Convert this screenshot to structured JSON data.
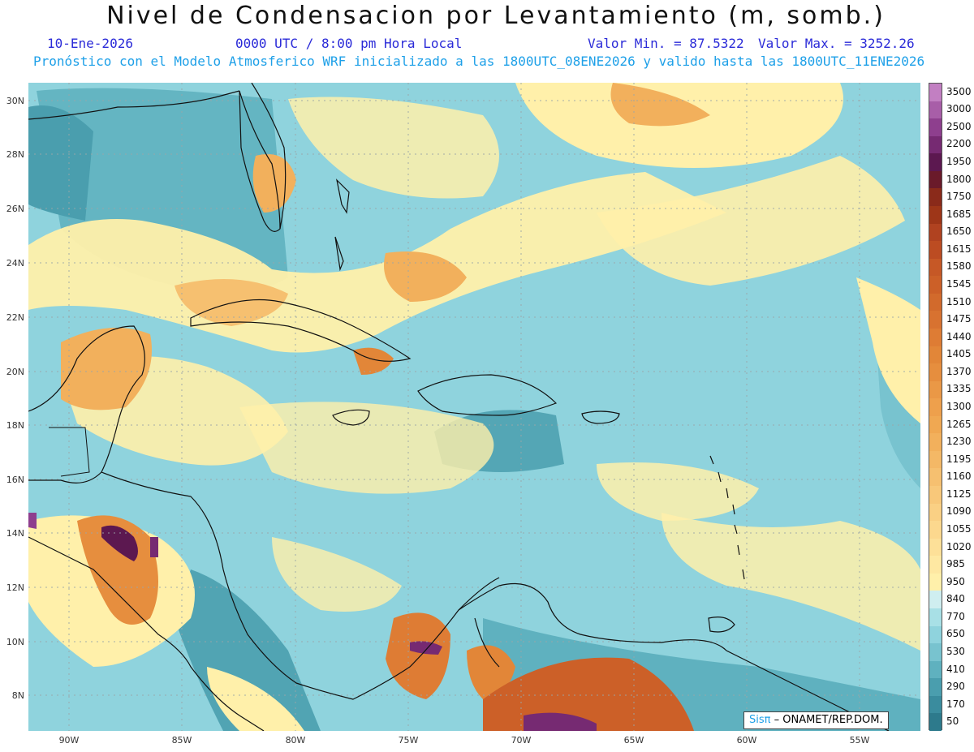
{
  "header": {
    "title": "Nivel de Condensacion por Levantamiento (m, somb.)",
    "date": "10-Ene-2026",
    "time": "0000 UTC / 8:00 pm Hora Local",
    "val_min": "Valor Min. = 87.5322",
    "val_max": "Valor Max. = 3252.26",
    "model_info": "Pronóstico con el Modelo Atmosferico WRF inicializado a las 1800UTC_08ENE2026 y valido hasta las  1800UTC_11ENE2026"
  },
  "map": {
    "lat_labels": [
      "30N",
      "28N",
      "26N",
      "24N",
      "22N",
      "20N",
      "18N",
      "16N",
      "14N",
      "12N",
      "10N",
      "8N"
    ],
    "lon_labels": [
      "90W",
      "85W",
      "80W",
      "75W",
      "70W",
      "65W",
      "60W",
      "55W"
    ]
  },
  "colorbar": {
    "labels": [
      "3500",
      "3000",
      "2500",
      "2200",
      "1950",
      "1800",
      "1750",
      "1685",
      "1650",
      "1615",
      "1580",
      "1545",
      "1510",
      "1475",
      "1440",
      "1405",
      "1370",
      "1335",
      "1300",
      "1265",
      "1230",
      "1195",
      "1160",
      "1125",
      "1090",
      "1055",
      "1020",
      "985",
      "950",
      "840",
      "770",
      "650",
      "530",
      "410",
      "290",
      "170",
      "50"
    ],
    "colors": [
      "#c27fc2",
      "#a85ea8",
      "#8e3f8e",
      "#762a72",
      "#5c1850",
      "#6a1a2a",
      "#8a2a1a",
      "#9e3618",
      "#b04220",
      "#bc4c22",
      "#c65826",
      "#cc6028",
      "#d26a2c",
      "#d87230",
      "#de7c34",
      "#e28638",
      "#e68e3e",
      "#ea9846",
      "#eea04c",
      "#f0a852",
      "#f2b05c",
      "#f4b866",
      "#f6c070",
      "#f8c87a",
      "#fad084",
      "#fcd88e",
      "#fde098",
      "#fee8a2",
      "#fff0aa",
      "#cfeef0",
      "#a8e0e6",
      "#8fd3dd",
      "#78c3cf",
      "#5fb1bf",
      "#4a9eae",
      "#3a8c9e",
      "#2d7a8c"
    ]
  },
  "credit": {
    "brand": "Sisπ",
    "text": " – ONAMET/REP.DOM."
  }
}
